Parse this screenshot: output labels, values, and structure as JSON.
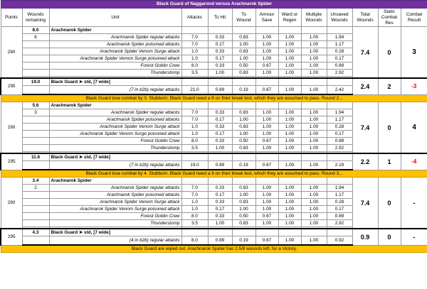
{
  "title": "Black Guard of Naggarond versus Arachnarok Spider",
  "headers": {
    "points": "Points",
    "wounds_remaining": "Wounds remaining",
    "unit": "Unit",
    "attacks": "Attacks",
    "to_hit": "To Hit",
    "to_wound": "To Wound",
    "armour_save": "Armour Save",
    "ward_regen": "Ward or Regen",
    "multiple_wounds": "Multiple Wounds",
    "unsaved_wounds": "Unsaved Wounds",
    "total_wounds": "Total Wounds",
    "static_res": "Static Combat Res",
    "combat_result": "Combat Result"
  },
  "rounds": [
    {
      "spider": {
        "points": "290",
        "wounds": "8.0",
        "sub_wounds": "6",
        "name": "Arachnarok Spider",
        "total": "7.4",
        "static": "0",
        "result": "3",
        "rows": [
          {
            "unit": "Arachnarok Spider regular attacks",
            "attacks": "7.0",
            "hit": "0.33",
            "wound": "0.83",
            "save": "1.00",
            "ward": "1.00",
            "mult": "1.00",
            "unsaved": "1.94"
          },
          {
            "unit": "Arachnarok Spider poisoned attacks",
            "attacks": "7.0",
            "hit": "0.17",
            "wound": "1.00",
            "save": "1.00",
            "ward": "1.00",
            "mult": "1.00",
            "unsaved": "1.17"
          },
          {
            "unit": "Arachnarok Spider Venom Surge attack",
            "attacks": "1.0",
            "hit": "0.33",
            "wound": "0.83",
            "save": "1.00",
            "ward": "1.00",
            "mult": "1.00",
            "unsaved": "0.28"
          },
          {
            "unit": "Arachnarok Spider Vemon Surge poisoned attack",
            "attacks": "1.0",
            "hit": "0.17",
            "wound": "1.00",
            "save": "1.00",
            "ward": "1.00",
            "mult": "1.00",
            "unsaved": "0.17"
          },
          {
            "unit": "Forest Goblin Crew",
            "attacks": "8.0",
            "hit": "0.33",
            "wound": "0.50",
            "save": "0.67",
            "ward": "1.00",
            "mult": "1.00",
            "unsaved": "0.89"
          },
          {
            "unit": "Thunderstomp",
            "attacks": "3.5",
            "hit": "1.00",
            "wound": "0.83",
            "save": "1.00",
            "ward": "1.00",
            "mult": "1.00",
            "unsaved": "2.92"
          }
        ]
      },
      "guard": {
        "points": "295",
        "wounds": "19.0",
        "name": "Black Guard ➤ std, [7 wide]",
        "total": "2.4",
        "static": "2",
        "result": "-3",
        "row": {
          "unit": "(7 in b2b) regular attacks",
          "attacks": "21.0",
          "hit": "0.89",
          "wound": "0.19",
          "save": "0.67",
          "ward": "1.00",
          "mult": "1.00",
          "unsaved": "2.42"
        }
      },
      "note": "Black Guard lose combat by 3.  Stubborn.  Black Guard need a 9 on their break test, which they are assumed to pass.  Round 2..."
    },
    {
      "spider": {
        "points": "290",
        "wounds": "5.6",
        "sub_wounds": "3",
        "name": "Arachnarok Spider",
        "total": "7.4",
        "static": "0",
        "result": "4",
        "rows": [
          {
            "unit": "Arachnarok Spider regular attacks",
            "attacks": "7.0",
            "hit": "0.33",
            "wound": "0.83",
            "save": "1.00",
            "ward": "1.00",
            "mult": "1.00",
            "unsaved": "1.94"
          },
          {
            "unit": "Arachnarok Spider poisoned attacks",
            "attacks": "7.0",
            "hit": "0.17",
            "wound": "1.00",
            "save": "1.00",
            "ward": "1.00",
            "mult": "1.00",
            "unsaved": "1.17"
          },
          {
            "unit": "Arachnarok Spider Venom Surge attack",
            "attacks": "1.0",
            "hit": "0.33",
            "wound": "0.83",
            "save": "1.00",
            "ward": "1.00",
            "mult": "1.00",
            "unsaved": "0.28"
          },
          {
            "unit": "Arachnarok Spider Venom Surge poisoned attack",
            "attacks": "1.0",
            "hit": "0.17",
            "wound": "1.00",
            "save": "1.00",
            "ward": "1.00",
            "mult": "1.00",
            "unsaved": "0.17"
          },
          {
            "unit": "Forest Goblin Crew",
            "attacks": "8.0",
            "hit": "0.33",
            "wound": "0.50",
            "save": "0.67",
            "ward": "1.00",
            "mult": "1.00",
            "unsaved": "0.89"
          },
          {
            "unit": "Thunderstomp",
            "attacks": "3.5",
            "hit": "1.00",
            "wound": "0.83",
            "save": "1.00",
            "ward": "1.00",
            "mult": "1.00",
            "unsaved": "2.92"
          }
        ]
      },
      "guard": {
        "points": "295",
        "wounds": "11.6",
        "name": "Black Guard ➤ std, [7 wide]",
        "total": "2.2",
        "static": "1",
        "result": "-4",
        "row": {
          "unit": "(7 in b2b) regular attacks",
          "attacks": "19.0",
          "hit": "0.89",
          "wound": "0.19",
          "save": "0.67",
          "ward": "1.00",
          "mult": "1.00",
          "unsaved": "2.19"
        }
      },
      "note": "Black Guard lose combat by 4.  Stubborn.  Black Guard need a 9 on their break test, which they are assumed to pass.  Round 3..."
    },
    {
      "spider": {
        "points": "290",
        "wounds": "3.4",
        "sub_wounds": "2",
        "name": "Arachnarok Spider",
        "total": "7.4",
        "static": "0",
        "result": "-",
        "rows": [
          {
            "unit": "Arachnarok Spider regular attacks",
            "attacks": "7.0",
            "hit": "0.33",
            "wound": "0.83",
            "save": "1.00",
            "ward": "1.00",
            "mult": "1.00",
            "unsaved": "1.94"
          },
          {
            "unit": "Arachnarok Spider poisoned attacks",
            "attacks": "7.0",
            "hit": "0.17",
            "wound": "1.00",
            "save": "1.00",
            "ward": "1.00",
            "mult": "1.00",
            "unsaved": "1.17"
          },
          {
            "unit": "Arachnarok Spider Venom Surge attack",
            "attacks": "1.0",
            "hit": "0.33",
            "wound": "0.83",
            "save": "1.00",
            "ward": "1.00",
            "mult": "1.00",
            "unsaved": "0.28"
          },
          {
            "unit": "Arachnarok Spider Venom Surge poisoned attack",
            "attacks": "1.0",
            "hit": "0.17",
            "wound": "1.00",
            "save": "1.00",
            "ward": "1.00",
            "mult": "1.00",
            "unsaved": "0.17"
          },
          {
            "unit": "Forest Goblin Crew",
            "attacks": "8.0",
            "hit": "0.33",
            "wound": "0.50",
            "save": "0.67",
            "ward": "1.00",
            "mult": "1.00",
            "unsaved": "0.89"
          },
          {
            "unit": "Thunderstomp",
            "attacks": "3.5",
            "hit": "1.00",
            "wound": "0.83",
            "save": "1.00",
            "ward": "1.00",
            "mult": "1.00",
            "unsaved": "2.92"
          }
        ]
      },
      "guard": {
        "points": "295",
        "wounds": "4.3",
        "name": "Black Guard ➤ std, [7 wide]",
        "total": "0.9",
        "static": "0",
        "result": "-",
        "row": {
          "unit": "(4 in b2b) regular attacks",
          "attacks": "8.0",
          "hit": "0.89",
          "wound": "0.19",
          "save": "0.67",
          "ward": "1.00",
          "mult": "1.00",
          "unsaved": "0.92"
        }
      },
      "note": "Black Guard are wiped out.  Arachnarok Spider has 2.5/8 wounds left, for a Victory."
    }
  ]
}
